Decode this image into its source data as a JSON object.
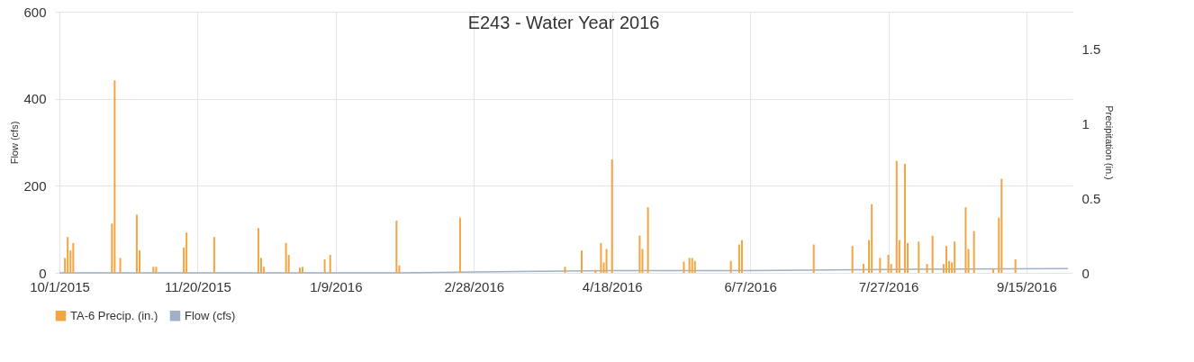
{
  "chart_data": {
    "type": "bar",
    "title": "E243 - Water Year 2016",
    "ylabel": "Flow (cfs)",
    "y2label": "Precipitation (in.)",
    "xlim": [
      "2015-10-01",
      "2016-09-30"
    ],
    "xticks": [
      {
        "value": "2015-10-01",
        "label": "10/1/2015"
      },
      {
        "value": "2015-11-20",
        "label": "11/20/2015"
      },
      {
        "value": "2016-01-09",
        "label": "1/9/2016"
      },
      {
        "value": "2016-02-28",
        "label": "2/28/2016"
      },
      {
        "value": "2016-04-18",
        "label": "4/18/2016"
      },
      {
        "value": "2016-06-07",
        "label": "6/7/2016"
      },
      {
        "value": "2016-07-27",
        "label": "7/27/2016"
      },
      {
        "value": "2016-09-15",
        "label": "9/15/2016"
      }
    ],
    "ylim": [
      0,
      600
    ],
    "yticks": [
      0,
      200,
      400,
      600
    ],
    "y2lim": [
      0,
      1.75
    ],
    "y2ticks": [
      0,
      0.5,
      1,
      1.5
    ],
    "grid": true,
    "legend": "bottom",
    "series": [
      {
        "name": "TA-6 Precip. (in.)",
        "axis": "y2",
        "color": "#f2a541",
        "x": [
          "2015-10-03",
          "2015-10-04",
          "2015-10-05",
          "2015-10-06",
          "2015-10-20",
          "2015-10-21",
          "2015-10-23",
          "2015-10-29",
          "2015-10-30",
          "2015-11-04",
          "2015-11-05",
          "2015-11-15",
          "2015-11-16",
          "2015-11-26",
          "2015-12-12",
          "2015-12-13",
          "2015-12-14",
          "2015-12-22",
          "2015-12-23",
          "2015-12-27",
          "2015-12-28",
          "2016-01-05",
          "2016-01-07",
          "2016-01-31",
          "2016-02-01",
          "2016-02-23",
          "2016-04-01",
          "2016-04-07",
          "2016-04-12",
          "2016-04-14",
          "2016-04-15",
          "2016-04-16",
          "2016-04-18",
          "2016-04-28",
          "2016-04-29",
          "2016-05-01",
          "2016-05-14",
          "2016-05-16",
          "2016-05-17",
          "2016-05-18",
          "2016-05-31",
          "2016-06-03",
          "2016-06-04",
          "2016-06-30",
          "2016-07-14",
          "2016-07-18",
          "2016-07-20",
          "2016-07-21",
          "2016-07-24",
          "2016-07-27",
          "2016-07-28",
          "2016-07-30",
          "2016-07-31",
          "2016-08-02",
          "2016-08-03",
          "2016-08-07",
          "2016-08-10",
          "2016-08-12",
          "2016-08-16",
          "2016-08-17",
          "2016-08-18",
          "2016-08-19",
          "2016-08-20",
          "2016-08-24",
          "2016-08-25",
          "2016-08-27",
          "2016-09-03",
          "2016-09-05",
          "2016-09-06",
          "2016-09-11"
        ],
        "values": [
          0.1,
          0.24,
          0.15,
          0.2,
          0.33,
          1.29,
          0.1,
          0.39,
          0.15,
          0.04,
          0.04,
          0.17,
          0.27,
          0.24,
          0.3,
          0.1,
          0.04,
          0.2,
          0.12,
          0.035,
          0.04,
          0.09,
          0.12,
          0.35,
          0.05,
          0.37,
          0.04,
          0.15,
          0.02,
          0.2,
          0.07,
          0.16,
          0.76,
          0.25,
          0.16,
          0.44,
          0.075,
          0.1,
          0.1,
          0.08,
          0.08,
          0.19,
          0.22,
          0.19,
          0.18,
          0.06,
          0.22,
          0.46,
          0.1,
          0.12,
          0.06,
          0.75,
          0.22,
          0.73,
          0.2,
          0.21,
          0.06,
          0.25,
          0.06,
          0.18,
          0.08,
          0.07,
          0.21,
          0.44,
          0.16,
          0.28,
          0.03,
          0.37,
          0.63,
          0.09
        ]
      },
      {
        "name": "Flow (cfs)",
        "type": "line",
        "color": "#9fb1c4",
        "x": [
          "2015-10-01",
          "2016-02-01",
          "2016-03-15",
          "2016-04-18",
          "2016-06-07",
          "2016-07-27",
          "2016-09-30"
        ],
        "values": [
          0,
          0,
          3,
          5,
          5,
          8,
          10
        ]
      }
    ]
  }
}
